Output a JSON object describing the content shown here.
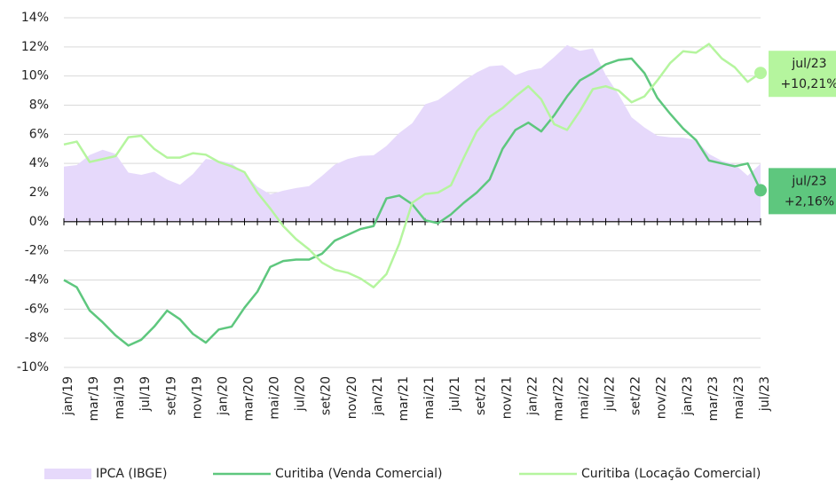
{
  "chart_data": {
    "type": "line",
    "categories": [
      "jan/19",
      null,
      "mar/19",
      null,
      "mai/19",
      null,
      "jul/19",
      null,
      "set/19",
      null,
      "nov/19",
      null,
      "jan/20",
      null,
      "mar/20",
      null,
      "mai/20",
      null,
      "jul/20",
      null,
      "set/20",
      null,
      "nov/20",
      null,
      "jan/21",
      null,
      "mar/21",
      null,
      "mai/21",
      null,
      "jul/21",
      null,
      "set/21",
      null,
      "nov/21",
      null,
      "jan/22",
      null,
      "mar/22",
      null,
      "mai/22",
      null,
      "jul/22",
      null,
      "set/22",
      null,
      "nov/22",
      null,
      "jan/23",
      null,
      "mar/23",
      null,
      "mai/23",
      null,
      "jul/23"
    ],
    "series": [
      {
        "name": "IPCA (IBGE)",
        "type": "area",
        "color": "#e6d9fb",
        "values": [
          3.78,
          3.89,
          4.58,
          4.94,
          4.66,
          3.37,
          3.22,
          3.43,
          2.89,
          2.54,
          3.27,
          4.31,
          4.19,
          4.01,
          3.3,
          2.4,
          1.88,
          2.13,
          2.31,
          2.44,
          3.14,
          3.92,
          4.31,
          4.52,
          4.56,
          5.2,
          6.1,
          6.76,
          8.06,
          8.35,
          8.99,
          9.68,
          10.25,
          10.67,
          10.74,
          10.06,
          10.38,
          10.54,
          11.3,
          12.13,
          11.73,
          11.89,
          10.07,
          8.73,
          7.17,
          6.47,
          5.9,
          5.79,
          5.77,
          5.6,
          4.65,
          4.18,
          3.94,
          3.16,
          3.99
        ]
      },
      {
        "name": "Curitiba (Venda Comercial)",
        "type": "line",
        "color": "#5ec77e",
        "values": [
          -4.0,
          -4.5,
          -6.1,
          -6.9,
          -7.8,
          -8.5,
          -8.1,
          -7.2,
          -6.1,
          -6.7,
          -7.7,
          -8.3,
          -7.4,
          -7.2,
          -5.9,
          -4.8,
          -3.1,
          -2.7,
          -2.6,
          -2.6,
          -2.2,
          -1.3,
          -0.9,
          -0.5,
          -0.3,
          1.6,
          1.8,
          1.2,
          0.1,
          -0.1,
          0.5,
          1.3,
          2.0,
          2.9,
          5.0,
          6.3,
          6.8,
          6.2,
          7.3,
          8.6,
          9.7,
          10.2,
          10.8,
          11.1,
          11.2,
          10.2,
          8.5,
          7.4,
          6.4,
          5.6,
          4.2,
          4.0,
          3.8,
          4.0,
          2.16
        ],
        "value_labels": [
          null,
          null,
          null,
          null,
          null,
          null,
          null,
          null,
          null,
          null,
          null,
          null,
          null,
          null,
          null,
          null,
          null,
          null,
          null,
          null,
          null,
          null,
          null,
          null,
          null,
          null,
          null,
          null,
          null,
          null,
          null,
          null,
          null,
          null,
          null,
          null,
          null,
          null,
          null,
          null,
          null,
          null,
          null,
          null,
          null,
          null,
          null,
          null,
          null,
          null,
          null,
          null,
          null,
          null,
          "+2,16%"
        ]
      },
      {
        "name": "Curitiba (Locação Comercial)",
        "type": "line",
        "color": "#b5f59e",
        "values": [
          5.3,
          5.5,
          4.1,
          4.3,
          4.5,
          5.8,
          5.9,
          5.0,
          4.4,
          4.4,
          4.7,
          4.6,
          4.1,
          3.8,
          3.4,
          2.0,
          0.9,
          -0.3,
          -1.2,
          -1.9,
          -2.8,
          -3.3,
          -3.5,
          -3.9,
          -4.5,
          -3.6,
          -1.5,
          1.3,
          1.9,
          2.0,
          2.5,
          4.4,
          6.2,
          7.2,
          7.8,
          8.6,
          9.3,
          8.4,
          6.7,
          6.3,
          7.6,
          9.1,
          9.3,
          9.0,
          8.2,
          8.6,
          9.7,
          10.9,
          11.7,
          11.6,
          12.2,
          11.2,
          10.6,
          9.6,
          10.21
        ],
        "value_labels": [
          null,
          null,
          null,
          null,
          null,
          null,
          null,
          null,
          null,
          null,
          null,
          null,
          null,
          null,
          null,
          null,
          null,
          null,
          null,
          null,
          null,
          null,
          null,
          null,
          null,
          null,
          null,
          null,
          null,
          null,
          null,
          null,
          null,
          null,
          null,
          null,
          null,
          null,
          null,
          null,
          null,
          null,
          null,
          null,
          null,
          null,
          null,
          null,
          null,
          null,
          null,
          null,
          null,
          null,
          "+10,21%"
        ]
      }
    ],
    "ylim": [
      -10,
      14
    ],
    "yticks": [
      {
        "value": -10,
        "label": "-10%"
      },
      {
        "value": -8,
        "label": "-8%"
      },
      {
        "value": -6,
        "label": "-6%"
      },
      {
        "value": -4,
        "label": "-4%"
      },
      {
        "value": -2,
        "label": "-2%"
      },
      {
        "value": 0,
        "label": "0%"
      },
      {
        "value": 2,
        "label": "2%"
      },
      {
        "value": 4,
        "label": "4%"
      },
      {
        "value": 6,
        "label": "6%"
      },
      {
        "value": 8,
        "label": "8%"
      },
      {
        "value": 10,
        "label": "10%"
      },
      {
        "value": 12,
        "label": "12%"
      },
      {
        "value": 14,
        "label": "14%"
      }
    ],
    "grid": true,
    "legend": "bottom"
  }
}
